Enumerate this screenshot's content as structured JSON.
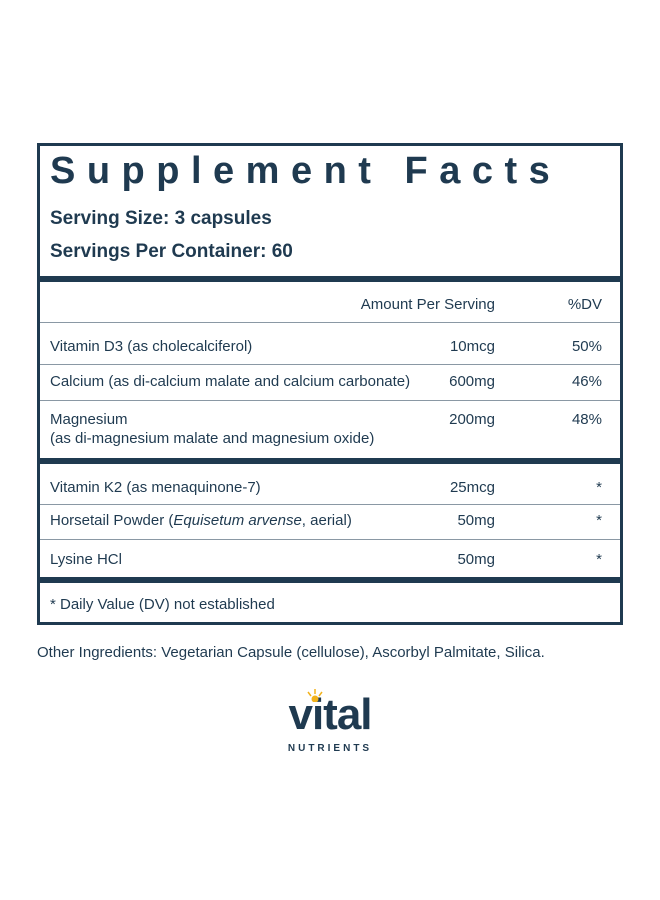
{
  "panel": {
    "title": "Supplement Facts",
    "serving_size": "Serving Size: 3 capsules",
    "servings_per_container": "Servings Per Container: 60",
    "columns": [
      "Amount Per Serving",
      "%DV"
    ],
    "rows": [
      {
        "name": "Vitamin D3 (as cholecalciferol)",
        "amount": "10mcg",
        "dv": "50%"
      },
      {
        "name": "Calcium (as di-calcium malate and calcium carbonate)",
        "amount": "600mg",
        "dv": "46%"
      },
      {
        "name": "Magnesium",
        "detail": "(as di-magnesium malate and magnesium oxide)",
        "amount": "200mg",
        "dv": "48%"
      },
      {
        "name": "Vitamin K2 (as menaquinone-7)",
        "amount": "25mcg",
        "dv": "*"
      },
      {
        "name_parts": [
          "Horsetail Powder (",
          "Equisetum arvense",
          ", aerial)"
        ],
        "amount": "50mg",
        "dv": "*"
      },
      {
        "name": "Lysine HCl",
        "amount": "50mg",
        "dv": "*"
      }
    ],
    "footnote": "* Daily Value (DV) not established"
  },
  "other_ingredients": "Other Ingredients: Vegetarian Capsule (cellulose), Ascorbyl Palmitate, Silica.",
  "logo": {
    "brand": "vital",
    "tagline": "NUTRIENTS"
  }
}
